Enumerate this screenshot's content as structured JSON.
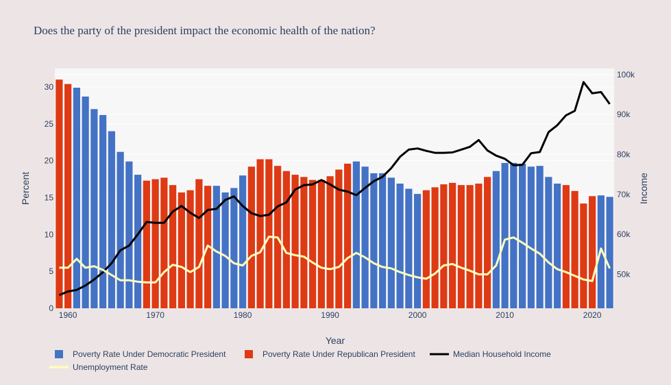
{
  "chart_data": {
    "type": "bar",
    "title": "Does the party of the president impact the economic health of the nation?",
    "xlabel": "Year",
    "ylabel": "Percent",
    "y2label": "Income",
    "xlim": [
      1958.5,
      2022.5
    ],
    "ylim": [
      0,
      32.5
    ],
    "y2lim": [
      41500,
      101500
    ],
    "xticks": [
      1960,
      1970,
      1980,
      1990,
      2000,
      2010,
      2020
    ],
    "yticks": [
      0,
      5,
      10,
      15,
      20,
      25,
      30
    ],
    "y2ticks": [
      50000,
      60000,
      70000,
      80000,
      90000,
      100000
    ],
    "y2ticklabels": [
      "50k",
      "60k",
      "70k",
      "80k",
      "90k",
      "100k"
    ],
    "grid": true,
    "legend_position": "bottom",
    "colors": {
      "democratic": "#4472c4",
      "republican": "#de3a14",
      "income": "#000000",
      "unemployment": "#ffffbb",
      "plot_bg": "#f7f7f8",
      "paper_bg": "#ede5e5",
      "text": "#2a3f5f"
    },
    "x": [
      1959,
      1960,
      1961,
      1962,
      1963,
      1964,
      1965,
      1966,
      1967,
      1968,
      1969,
      1970,
      1971,
      1972,
      1973,
      1974,
      1975,
      1976,
      1977,
      1978,
      1979,
      1980,
      1981,
      1982,
      1983,
      1984,
      1985,
      1986,
      1987,
      1988,
      1989,
      1990,
      1991,
      1992,
      1993,
      1994,
      1995,
      1996,
      1997,
      1998,
      1999,
      2000,
      2001,
      2002,
      2003,
      2004,
      2005,
      2006,
      2007,
      2008,
      2009,
      2010,
      2011,
      2012,
      2013,
      2014,
      2015,
      2016,
      2017,
      2018,
      2019,
      2020,
      2021,
      2022
    ],
    "series": [
      {
        "name": "Poverty Rate Under Democratic President",
        "type": "bar",
        "color": "#4472c4",
        "values": [
          null,
          null,
          29.9,
          28.7,
          27.0,
          26.2,
          24.0,
          21.2,
          19.9,
          18.1,
          null,
          null,
          null,
          null,
          null,
          null,
          null,
          null,
          16.6,
          15.7,
          16.3,
          18.0,
          null,
          null,
          null,
          null,
          null,
          null,
          null,
          null,
          null,
          null,
          null,
          null,
          19.9,
          19.2,
          18.3,
          18.3,
          17.7,
          16.9,
          16.2,
          15.5,
          null,
          null,
          null,
          null,
          null,
          null,
          null,
          null,
          18.6,
          19.7,
          19.7,
          19.6,
          19.2,
          19.3,
          17.8,
          16.9,
          null,
          null,
          null,
          null,
          15.3,
          15.1
        ]
      },
      {
        "name": "Poverty Rate Under Republican President",
        "type": "bar",
        "color": "#de3a14",
        "values": [
          31.0,
          30.4,
          null,
          null,
          null,
          null,
          null,
          null,
          null,
          null,
          17.3,
          17.5,
          17.7,
          16.7,
          15.7,
          16.0,
          17.5,
          16.6,
          null,
          null,
          null,
          null,
          19.2,
          20.2,
          20.2,
          19.3,
          18.6,
          18.1,
          17.8,
          17.4,
          17.4,
          17.9,
          18.8,
          19.6,
          null,
          null,
          null,
          null,
          null,
          null,
          null,
          null,
          16.0,
          16.4,
          16.8,
          17.0,
          16.7,
          16.7,
          16.9,
          17.8,
          null,
          null,
          null,
          null,
          null,
          null,
          null,
          null,
          16.7,
          15.9,
          14.2,
          15.2,
          null,
          null
        ]
      },
      {
        "name": "Median Household Income",
        "type": "line",
        "axis": "y2",
        "color": "#000000",
        "values": [
          44800,
          45700,
          46100,
          47200,
          48700,
          50500,
          52800,
          56000,
          57200,
          60000,
          63100,
          62900,
          62900,
          65700,
          67100,
          65400,
          64100,
          66100,
          66400,
          68600,
          69500,
          67100,
          65300,
          64600,
          64900,
          67000,
          68000,
          71200,
          72300,
          72500,
          73600,
          72500,
          71200,
          70700,
          69800,
          71600,
          73300,
          74400,
          76600,
          79400,
          81200,
          81500,
          80900,
          80400,
          80400,
          80500,
          81200,
          81900,
          83600,
          81000,
          79700,
          78900,
          77300,
          77400,
          80300,
          80600,
          85600,
          87300,
          89800,
          90900,
          98100,
          95300,
          95600,
          92600
        ]
      },
      {
        "name": "Unemployment Rate",
        "type": "line",
        "axis": "y",
        "color": "#ffffbb",
        "values": [
          5.5,
          5.5,
          6.7,
          5.5,
          5.7,
          5.2,
          4.5,
          3.8,
          3.8,
          3.6,
          3.5,
          3.5,
          4.9,
          5.9,
          5.6,
          4.9,
          5.6,
          8.5,
          7.7,
          7.1,
          6.1,
          5.8,
          7.1,
          7.6,
          9.7,
          9.6,
          7.5,
          7.2,
          7.0,
          6.2,
          5.5,
          5.3,
          5.6,
          6.8,
          7.5,
          6.9,
          6.1,
          5.6,
          5.4,
          4.9,
          4.5,
          4.2,
          4.0,
          4.7,
          5.8,
          6.0,
          5.5,
          5.1,
          4.6,
          4.6,
          5.8,
          9.3,
          9.6,
          8.9,
          8.1,
          7.4,
          6.2,
          5.3,
          4.9,
          4.4,
          3.9,
          3.7,
          8.1,
          5.4
        ]
      }
    ]
  }
}
